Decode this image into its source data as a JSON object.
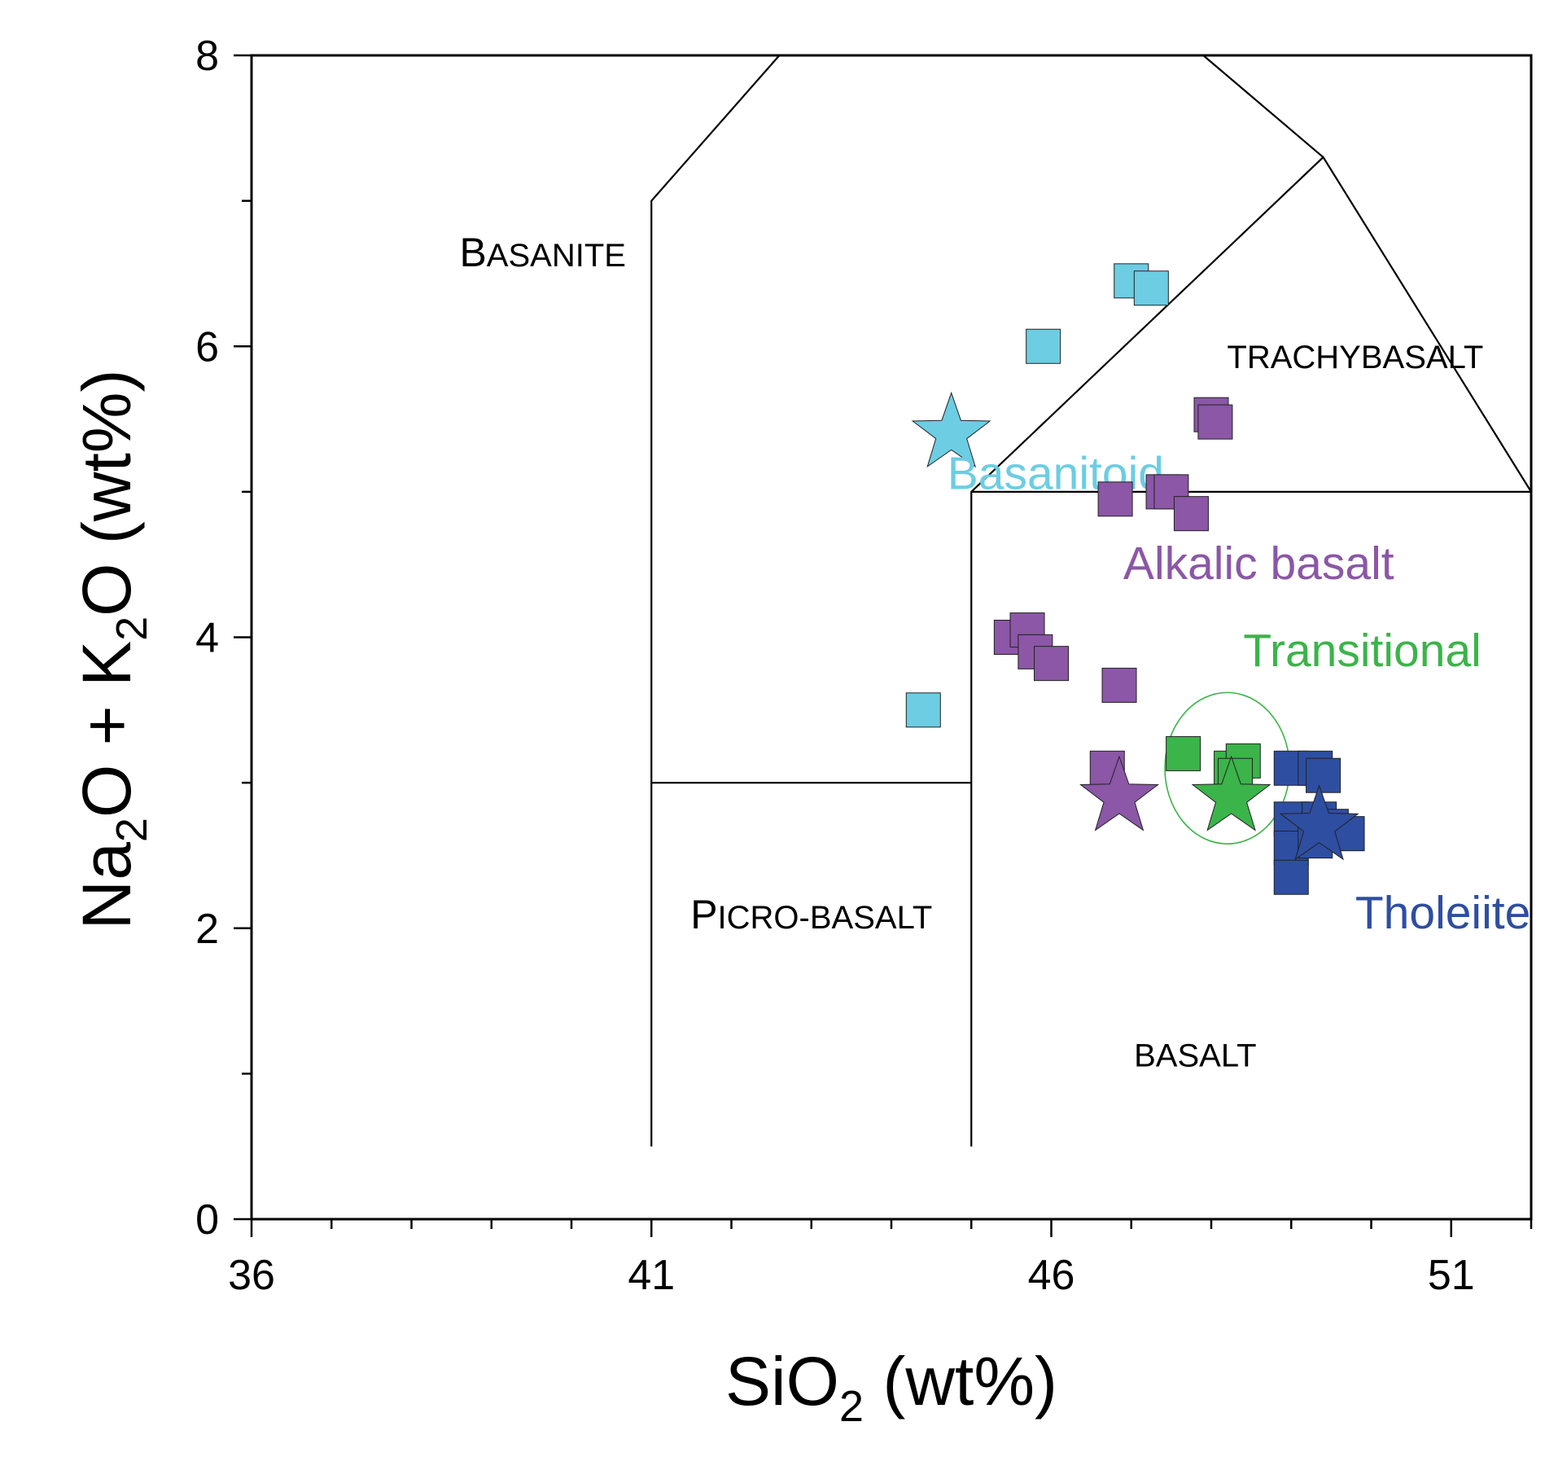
{
  "chart_data": {
    "type": "scatter",
    "xlabel": {
      "main": "SiO",
      "sub": "2",
      "tail": " (wt%)"
    },
    "ylabel": {
      "p1": "Na",
      "s1": "2",
      "p2": "O + K",
      "s2": "2",
      "p3": "O (wt%)"
    },
    "xlim": [
      36,
      52
    ],
    "ylim": [
      0,
      8
    ],
    "x_ticks": [
      36,
      41,
      46,
      51
    ],
    "x_tick_labels": [
      "36",
      "41",
      "46",
      "51"
    ],
    "x_minor_step": 1,
    "y_ticks": [
      0,
      2,
      4,
      6,
      8
    ],
    "y_tick_labels": [
      "0",
      "2",
      "4",
      "6",
      "8"
    ],
    "y_minor_step": 1,
    "fields": [
      {
        "name": "BASANITE",
        "big": "B",
        "small": "ASANITE",
        "x": 38.6,
        "y": 6.55,
        "anchor": "start"
      },
      {
        "name": "TRACHYBASALT",
        "big": "",
        "small": "TRACHYBASALT",
        "x": 49.8,
        "y": 5.85,
        "anchor": "middle"
      },
      {
        "name": "PICRO-BASALT",
        "big": "P",
        "small": "ICRO-BASALT",
        "x": 43.0,
        "y": 2.0,
        "anchor": "middle"
      },
      {
        "name": "BASALT",
        "big": "",
        "small": "BASALT",
        "x": 47.8,
        "y": 1.05,
        "anchor": "middle"
      }
    ],
    "boundaries": [
      [
        [
          41,
          0.5
        ],
        [
          41,
          7
        ],
        [
          42.6,
          8
        ]
      ],
      [
        [
          45,
          0.5
        ],
        [
          45,
          5
        ],
        [
          49.4,
          7.3
        ],
        [
          52,
          5
        ]
      ],
      [
        [
          41,
          3
        ],
        [
          45,
          3
        ]
      ],
      [
        [
          45,
          5
        ],
        [
          52,
          5
        ]
      ],
      [
        [
          47.9,
          8
        ],
        [
          49.4,
          7.3
        ]
      ]
    ],
    "series": [
      {
        "name": "Basanitoid",
        "color": "#6ccde3",
        "label_pos": [
          44.7,
          5.02
        ],
        "points": [
          [
            47.0,
            6.45
          ],
          [
            47.25,
            6.4
          ],
          [
            45.9,
            6.0
          ],
          [
            44.4,
            3.5
          ]
        ],
        "star": [
          44.75,
          5.4
        ]
      },
      {
        "name": "Alkalic basalt",
        "color": "#8b57a6",
        "label_pos": [
          46.9,
          4.4
        ],
        "points": [
          [
            48.0,
            5.53
          ],
          [
            48.05,
            5.48
          ],
          [
            47.4,
            5.0
          ],
          [
            47.5,
            5.0
          ],
          [
            46.8,
            4.95
          ],
          [
            47.75,
            4.85
          ],
          [
            45.5,
            4.0
          ],
          [
            45.7,
            4.05
          ],
          [
            45.8,
            3.9
          ],
          [
            46.0,
            3.82
          ],
          [
            46.85,
            3.67
          ],
          [
            46.7,
            3.1
          ]
        ],
        "star": [
          46.85,
          2.9
        ]
      },
      {
        "name": "Transitional",
        "color": "#3bb44a",
        "label_pos": [
          48.4,
          3.8
        ],
        "points": [
          [
            47.65,
            3.2
          ],
          [
            48.25,
            3.1
          ],
          [
            48.4,
            3.15
          ],
          [
            48.3,
            3.05
          ]
        ],
        "star": [
          48.25,
          2.9
        ],
        "ellipse": {
          "cx": 48.2,
          "cy": 3.1,
          "rx": 0.78,
          "ry": 0.52
        }
      },
      {
        "name": "Tholeiite",
        "color": "#2e4ea1",
        "label_pos": [
          49.8,
          2.0
        ],
        "points": [
          [
            49.0,
            3.1
          ],
          [
            49.3,
            3.1
          ],
          [
            49.4,
            3.05
          ],
          [
            49.0,
            2.75
          ],
          [
            49.35,
            2.75
          ],
          [
            49.5,
            2.7
          ],
          [
            49.7,
            2.65
          ],
          [
            49.0,
            2.55
          ],
          [
            49.3,
            2.6
          ],
          [
            49.0,
            2.35
          ]
        ],
        "star": [
          49.35,
          2.7
        ]
      }
    ]
  }
}
